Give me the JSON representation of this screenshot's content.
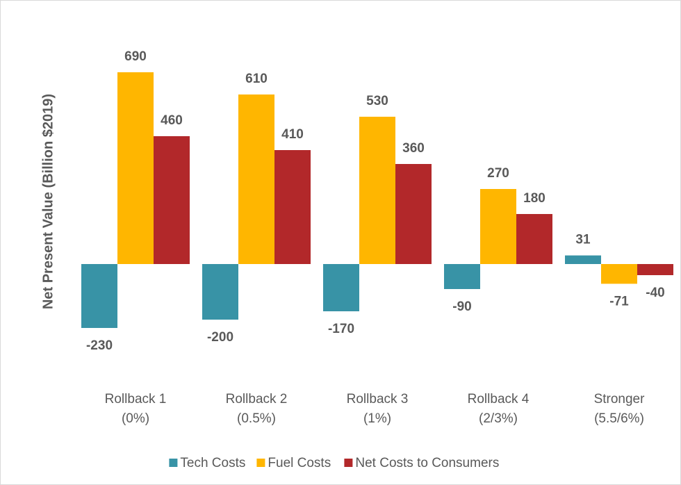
{
  "chart_data": {
    "type": "bar",
    "y_label": "Net Present Value (Billion $2019)",
    "categories": [
      "Rollback 1\n(0%)",
      "Rollback 2\n(0.5%)",
      "Rollback 3\n(1%)",
      "Rollback 4\n(2/3%)",
      "Stronger\n(5.5/6%)"
    ],
    "series": [
      {
        "name": "Tech Costs",
        "color": "#3893a6",
        "values": [
          -230,
          -200,
          -170,
          -90,
          31
        ]
      },
      {
        "name": "Fuel Costs",
        "color": "#ffb600",
        "values": [
          690,
          610,
          530,
          270,
          -71
        ]
      },
      {
        "name": "Net Costs to Consumers",
        "color": "#b2282a",
        "values": [
          460,
          410,
          360,
          180,
          -40
        ]
      }
    ],
    "ylim": [
      -300,
      800
    ]
  }
}
